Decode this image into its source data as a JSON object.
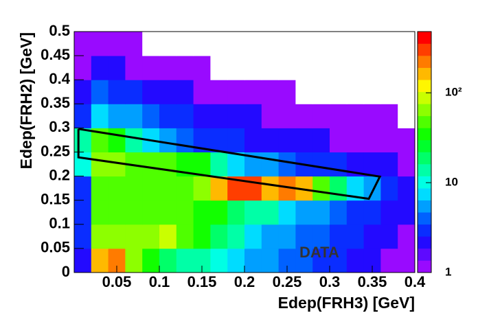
{
  "chart_data": {
    "type": "heatmap",
    "x_label": "Edep(FRH3) [GeV]",
    "y_label": "Edep(FRH2) [GeV]",
    "annotation": "DATA",
    "xlim": [
      0,
      0.4
    ],
    "ylim": [
      0,
      0.5
    ],
    "xticks": [
      0.05,
      0.1,
      0.15,
      0.2,
      0.25,
      0.3,
      0.35,
      0.4
    ],
    "yticks": [
      0,
      0.05,
      0.1,
      0.15,
      0.2,
      0.25,
      0.3,
      0.35,
      0.4,
      0.45,
      0.5
    ],
    "zlim": [
      1,
      480
    ],
    "zlog": true,
    "zticks": [
      1,
      10,
      {
        "value": 100,
        "label": "10²"
      }
    ],
    "z": [
      [
        2,
        150,
        250,
        60,
        30,
        20,
        15,
        12,
        10,
        8,
        6,
        5,
        4,
        4,
        3,
        3,
        2,
        2,
        1,
        1
      ],
      [
        3,
        60,
        60,
        60,
        70,
        80,
        50,
        30,
        20,
        12,
        8,
        6,
        5,
        4,
        4,
        3,
        3,
        2,
        2,
        1
      ],
      [
        3,
        50,
        50,
        50,
        50,
        50,
        45,
        40,
        30,
        20,
        15,
        12,
        8,
        6,
        5,
        4,
        3,
        3,
        2,
        2
      ],
      [
        3,
        50,
        50,
        50,
        50,
        50,
        50,
        60,
        150,
        300,
        350,
        150,
        200,
        180,
        50,
        20,
        8,
        5,
        3,
        2
      ],
      [
        10,
        60,
        60,
        55,
        50,
        45,
        40,
        30,
        15,
        8,
        6,
        5,
        4,
        3,
        3,
        3,
        2,
        2,
        2,
        1
      ],
      [
        15,
        50,
        30,
        15,
        8,
        5,
        4,
        3,
        3,
        3,
        2,
        2,
        2,
        2,
        2,
        1,
        1,
        1,
        1,
        1
      ],
      [
        3,
        8,
        6,
        5,
        4,
        3,
        3,
        2,
        2,
        2,
        2,
        1,
        1,
        1,
        1,
        1,
        1,
        1,
        1,
        0
      ],
      [
        2,
        4,
        3,
        3,
        2,
        2,
        2,
        1,
        1,
        1,
        1,
        1,
        1,
        0,
        0,
        0,
        0,
        0,
        0,
        0
      ],
      [
        1,
        2,
        2,
        1,
        1,
        1,
        1,
        1,
        0,
        0,
        0,
        0,
        0,
        0,
        0,
        0,
        0,
        0,
        0,
        0
      ],
      [
        1,
        1,
        1,
        1,
        0,
        0,
        0,
        0,
        0,
        0,
        0,
        0,
        0,
        0,
        0,
        0,
        0,
        0,
        0,
        0
      ]
    ],
    "cut": {
      "x": [
        0.005,
        0.359,
        0.346,
        0.005,
        0.005
      ],
      "y": [
        0.298,
        0.199,
        0.153,
        0.239,
        0.298
      ]
    }
  }
}
